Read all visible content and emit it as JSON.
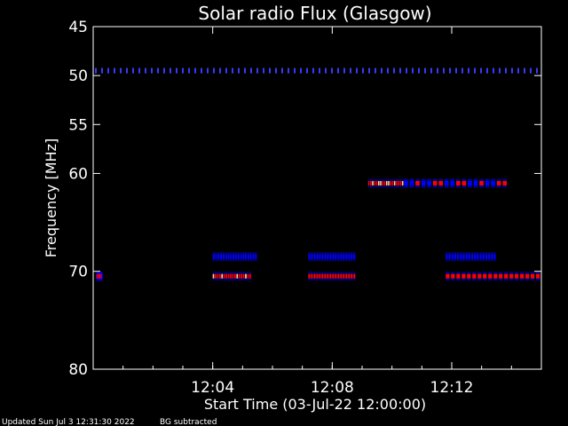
{
  "chart_data": {
    "type": "heatmap",
    "title": "Solar radio Flux (Glasgow)",
    "xlabel": "Start Time (03-Jul-22 12:00:00)",
    "ylabel": "Frequency [MHz]",
    "xlim_minutes": [
      0,
      15
    ],
    "ylim_mhz": [
      45,
      80
    ],
    "y_axis_inverted": true,
    "x_ticks": [
      {
        "minute": 4,
        "label": "12:04"
      },
      {
        "minute": 8,
        "label": "12:08"
      },
      {
        "minute": 12,
        "label": "12:12"
      }
    ],
    "y_ticks": [
      {
        "value": 45,
        "label": "45"
      },
      {
        "value": 50,
        "label": "50"
      },
      {
        "value": 55,
        "label": "55"
      },
      {
        "value": 60,
        "label": "60"
      },
      {
        "value": 70,
        "label": "70"
      },
      {
        "value": 80,
        "label": "80"
      }
    ],
    "colors": {
      "background": "#000000",
      "low": "#0000ff",
      "mid": "#ff0000",
      "high": "#ffd27f"
    },
    "features": [
      {
        "name": "interference band",
        "f_mhz": 49.5,
        "t_start": 0,
        "t_end": 15,
        "intensity": 0.55,
        "dotted": true
      },
      {
        "name": "burst",
        "f_mhz": 61.0,
        "t_start": 9.2,
        "t_end": 10.4,
        "intensity": 1.0
      },
      {
        "name": "burst tail",
        "f_mhz": 61.0,
        "t_start": 10.4,
        "t_end": 13.9,
        "intensity": 0.6
      },
      {
        "name": "band 70.5",
        "f_mhz": 70.5,
        "t_start": 4.0,
        "t_end": 5.3,
        "intensity": 0.9
      },
      {
        "name": "band 70.5",
        "f_mhz": 70.5,
        "t_start": 7.2,
        "t_end": 8.8,
        "intensity": 0.85
      },
      {
        "name": "band 70.5",
        "f_mhz": 70.5,
        "t_start": 11.8,
        "t_end": 15,
        "intensity": 0.85
      },
      {
        "name": "band 70.5",
        "f_mhz": 70.5,
        "t_start": 0.1,
        "t_end": 0.3,
        "intensity": 0.8
      },
      {
        "name": "band 68.5",
        "f_mhz": 68.5,
        "t_start": 4.0,
        "t_end": 5.5,
        "intensity": 0.5
      },
      {
        "name": "band 68.5",
        "f_mhz": 68.5,
        "t_start": 7.2,
        "t_end": 8.8,
        "intensity": 0.5
      },
      {
        "name": "band 68.5",
        "f_mhz": 68.5,
        "t_start": 11.8,
        "t_end": 13.5,
        "intensity": 0.5
      }
    ]
  },
  "footer": {
    "updated": "Updated Sun Jul  3 12:31:30 2022",
    "note": "BG subtracted"
  }
}
